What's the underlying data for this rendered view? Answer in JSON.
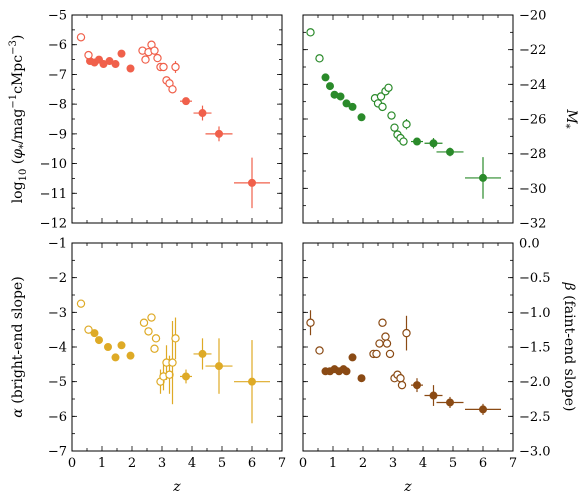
{
  "chart_data": [
    {
      "type": "scatter",
      "panel": "top-left",
      "title": "",
      "xlabel": "",
      "ylabel": "log$_{10}$ ($\\phi_*$/mag$^{-1}$cMpc$^{-3}$)",
      "ylabel_parts": {
        "pre": "log",
        "sub": "10",
        "mid": " (",
        "phi": "φ",
        "phisub": "*",
        "unit": "/mag",
        "sup1": "−1",
        "unit2": "cMpc",
        "sup2": "−3",
        "post": ")"
      },
      "xlim": [
        0,
        7
      ],
      "ylim": [
        -12,
        -5
      ],
      "yticks": [
        -12,
        -11,
        -10,
        -9,
        -8,
        -7,
        -6,
        -5
      ],
      "ytick_labels": [
        "−12",
        "−11",
        "−10",
        "−9",
        "−8",
        "−7",
        "−6",
        "−5"
      ],
      "color": "#f0604b",
      "series": [
        {
          "marker": "filled",
          "points": [
            {
              "x": 0.6,
              "y": -6.55
            },
            {
              "x": 0.75,
              "y": -6.6
            },
            {
              "x": 0.9,
              "y": -6.5
            },
            {
              "x": 1.05,
              "y": -6.65
            },
            {
              "x": 1.25,
              "y": -6.55
            },
            {
              "x": 1.45,
              "y": -6.65
            },
            {
              "x": 1.65,
              "y": -6.3
            },
            {
              "x": 1.95,
              "y": -6.8
            },
            {
              "x": 3.8,
              "y": -7.9,
              "xerr": 0.2,
              "yerr": 0.1
            },
            {
              "x": 4.35,
              "y": -8.3,
              "xerr": 0.3,
              "yerr": 0.25
            },
            {
              "x": 4.9,
              "y": -9.0,
              "xerr": 0.45,
              "yerr": 0.25
            },
            {
              "x": 6.0,
              "y": -10.65,
              "xerr": 0.6,
              "yerr": 0.85
            }
          ]
        },
        {
          "marker": "open",
          "points": [
            {
              "x": 0.3,
              "y": -5.75
            },
            {
              "x": 0.55,
              "y": -6.35
            },
            {
              "x": 2.35,
              "y": -6.2
            },
            {
              "x": 2.45,
              "y": -6.5
            },
            {
              "x": 2.55,
              "y": -6.25
            },
            {
              "x": 2.65,
              "y": -6.0
            },
            {
              "x": 2.75,
              "y": -6.2
            },
            {
              "x": 2.85,
              "y": -6.45
            },
            {
              "x": 2.95,
              "y": -6.75
            },
            {
              "x": 3.05,
              "y": -6.75
            },
            {
              "x": 3.15,
              "y": -7.2
            },
            {
              "x": 3.25,
              "y": -7.3
            },
            {
              "x": 3.35,
              "y": -7.5
            },
            {
              "x": 3.45,
              "y": -6.75,
              "yerr": 0.2
            }
          ]
        }
      ]
    },
    {
      "type": "scatter",
      "panel": "top-right",
      "title": "",
      "xlabel": "",
      "ylabel": "$M_*$",
      "ylabel_parts": {
        "main": "M",
        "sub": "*"
      },
      "xlim": [
        0,
        7
      ],
      "ylim": [
        -32,
        -20
      ],
      "yaxis_side": "right",
      "yticks": [
        -32,
        -30,
        -28,
        -26,
        -24,
        -22,
        -20
      ],
      "ytick_labels": [
        "−32",
        "−30",
        "−28",
        "−26",
        "−24",
        "−22",
        "−20"
      ],
      "color": "#2a8a2a",
      "series": [
        {
          "marker": "filled",
          "points": [
            {
              "x": 0.75,
              "y": -23.6
            },
            {
              "x": 0.9,
              "y": -24.1
            },
            {
              "x": 1.05,
              "y": -24.6
            },
            {
              "x": 1.25,
              "y": -24.7
            },
            {
              "x": 1.45,
              "y": -25.1
            },
            {
              "x": 1.65,
              "y": -25.3
            },
            {
              "x": 1.95,
              "y": -25.9
            },
            {
              "x": 3.8,
              "y": -27.3,
              "xerr": 0.2,
              "yerr": 0.15
            },
            {
              "x": 4.35,
              "y": -27.4,
              "xerr": 0.3,
              "yerr": 0.3
            },
            {
              "x": 4.9,
              "y": -27.9,
              "xerr": 0.45,
              "yerr": 0.25
            },
            {
              "x": 6.0,
              "y": -29.4,
              "xerr": 0.6,
              "yerr": 1.2
            }
          ]
        },
        {
          "marker": "open",
          "points": [
            {
              "x": 0.25,
              "y": -21.0
            },
            {
              "x": 0.55,
              "y": -22.5
            },
            {
              "x": 2.4,
              "y": -24.8
            },
            {
              "x": 2.5,
              "y": -25.1
            },
            {
              "x": 2.6,
              "y": -24.7
            },
            {
              "x": 2.65,
              "y": -25.3
            },
            {
              "x": 2.75,
              "y": -24.4
            },
            {
              "x": 2.85,
              "y": -24.2
            },
            {
              "x": 2.95,
              "y": -25.8
            },
            {
              "x": 3.05,
              "y": -26.5
            },
            {
              "x": 3.15,
              "y": -26.9
            },
            {
              "x": 3.25,
              "y": -27.1
            },
            {
              "x": 3.35,
              "y": -27.3
            },
            {
              "x": 3.45,
              "y": -26.3,
              "yerr": 0.3
            }
          ]
        }
      ]
    },
    {
      "type": "scatter",
      "panel": "bottom-left",
      "title": "",
      "xlabel": "$z$",
      "ylabel": "$\\alpha$ (bright-end slope)",
      "ylabel_parts": {
        "greek": "α",
        "text": " (bright-end slope)"
      },
      "xlim": [
        0,
        7
      ],
      "ylim": [
        -7,
        -1
      ],
      "yticks": [
        -7,
        -6,
        -5,
        -4,
        -3,
        -2,
        -1
      ],
      "ytick_labels": [
        "−7",
        "−6",
        "−5",
        "−4",
        "−3",
        "−2",
        "−1"
      ],
      "xticks": [
        0,
        1,
        2,
        3,
        4,
        5,
        6,
        7
      ],
      "xtick_labels": [
        "0",
        "1",
        "2",
        "3",
        "4",
        "5",
        "6",
        "7"
      ],
      "color": "#deaa26",
      "series": [
        {
          "marker": "filled",
          "points": [
            {
              "x": 0.75,
              "y": -3.6
            },
            {
              "x": 0.9,
              "y": -3.8
            },
            {
              "x": 1.2,
              "y": -4.0
            },
            {
              "x": 1.45,
              "y": -4.3
            },
            {
              "x": 1.65,
              "y": -3.95
            },
            {
              "x": 1.95,
              "y": -4.25
            },
            {
              "x": 3.8,
              "y": -4.85,
              "xerr": 0.2,
              "yerr": 0.2
            },
            {
              "x": 4.35,
              "y": -4.2,
              "xerr": 0.3,
              "yerr": 0.45
            },
            {
              "x": 4.9,
              "y": -4.55,
              "xerr": 0.45,
              "yerr": 0.8
            },
            {
              "x": 6.0,
              "y": -5.0,
              "xerr": 0.6,
              "yerr": 1.2
            }
          ]
        },
        {
          "marker": "open",
          "points": [
            {
              "x": 0.3,
              "y": -2.75
            },
            {
              "x": 0.55,
              "y": -3.5
            },
            {
              "x": 2.4,
              "y": -3.3
            },
            {
              "x": 2.55,
              "y": -3.55
            },
            {
              "x": 2.65,
              "y": -3.15
            },
            {
              "x": 2.75,
              "y": -4.05
            },
            {
              "x": 2.8,
              "y": -3.75
            },
            {
              "x": 2.95,
              "y": -5.0,
              "yerr": 0.35
            },
            {
              "x": 3.05,
              "y": -4.85,
              "yerr": 0.4
            },
            {
              "x": 3.15,
              "y": -4.45,
              "yerr": 0.5
            },
            {
              "x": 3.25,
              "y": -4.8,
              "yerr": 0.55
            },
            {
              "x": 3.35,
              "y": -4.45,
              "yerr": 1.2
            },
            {
              "x": 3.45,
              "y": -3.75,
              "yerr": 0.6
            }
          ]
        }
      ]
    },
    {
      "type": "scatter",
      "panel": "bottom-right",
      "title": "",
      "xlabel": "$z$",
      "ylabel": "$\\beta$ (faint-end slope)",
      "ylabel_parts": {
        "greek": "β",
        "text": " (faint-end slope)"
      },
      "xlim": [
        0,
        7
      ],
      "ylim": [
        -3.0,
        0.0
      ],
      "yaxis_side": "right",
      "yticks": [
        -3.0,
        -2.5,
        -2.0,
        -1.5,
        -1.0,
        -0.5,
        0.0
      ],
      "ytick_labels": [
        "−3.0",
        "−2.5",
        "−2.0",
        "−1.5",
        "−1.0",
        "−0.5",
        "0.0"
      ],
      "xticks": [
        0,
        1,
        2,
        3,
        4,
        5,
        6,
        7
      ],
      "xtick_labels": [
        "0",
        "1",
        "2",
        "3",
        "4",
        "5",
        "6",
        "7"
      ],
      "color": "#8a4a14",
      "series": [
        {
          "marker": "filled",
          "points": [
            {
              "x": 0.75,
              "y": -1.85
            },
            {
              "x": 0.9,
              "y": -1.85
            },
            {
              "x": 1.05,
              "y": -1.82
            },
            {
              "x": 1.2,
              "y": -1.85
            },
            {
              "x": 1.35,
              "y": -1.82
            },
            {
              "x": 1.45,
              "y": -1.85
            },
            {
              "x": 1.65,
              "y": -1.65
            },
            {
              "x": 1.95,
              "y": -1.95
            },
            {
              "x": 3.8,
              "y": -2.05,
              "xerr": 0.2,
              "yerr": 0.1
            },
            {
              "x": 4.35,
              "y": -2.2,
              "xerr": 0.3,
              "yerr": 0.15
            },
            {
              "x": 4.9,
              "y": -2.3,
              "xerr": 0.45,
              "yerr": 0.08
            },
            {
              "x": 6.0,
              "y": -2.4,
              "xerr": 0.6,
              "yerr": 0.08
            }
          ]
        },
        {
          "marker": "open",
          "points": [
            {
              "x": 0.25,
              "y": -1.15,
              "yerr": 0.18
            },
            {
              "x": 0.55,
              "y": -1.55
            },
            {
              "x": 2.35,
              "y": -1.6
            },
            {
              "x": 2.45,
              "y": -1.6
            },
            {
              "x": 2.55,
              "y": -1.45
            },
            {
              "x": 2.65,
              "y": -1.15
            },
            {
              "x": 2.75,
              "y": -1.35
            },
            {
              "x": 2.8,
              "y": -1.45
            },
            {
              "x": 2.9,
              "y": -1.6
            },
            {
              "x": 3.05,
              "y": -1.95
            },
            {
              "x": 3.15,
              "y": -1.9
            },
            {
              "x": 3.25,
              "y": -1.95
            },
            {
              "x": 3.3,
              "y": -2.05
            },
            {
              "x": 3.45,
              "y": -1.3,
              "yerr": 0.25
            }
          ]
        }
      ]
    }
  ]
}
